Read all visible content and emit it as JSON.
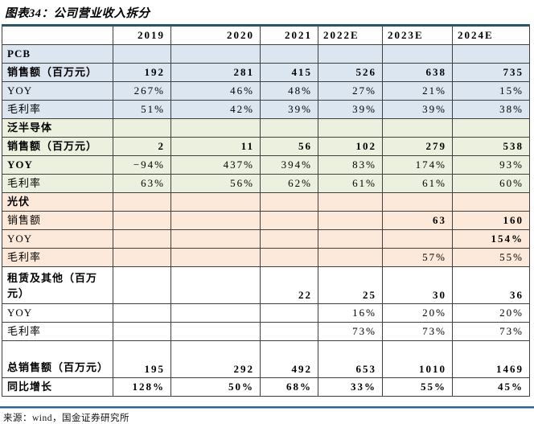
{
  "title": "图表34：公司营业收入拆分",
  "source": "来源：wind，国金证券研究所",
  "colors": {
    "pcb_section_fill": "#dce6f1",
    "semi_section_fill": "#ebf1de",
    "pv_section_fill": "#fde9d9",
    "grid_border": "#3f3f3f",
    "outer_top_border": "#2b5568",
    "bottom_rule_blue": "#35618f"
  },
  "table": {
    "columns": [
      "",
      "2019",
      "2020",
      "2021",
      "2022E",
      "2023E",
      "2024E"
    ],
    "rows": [
      {
        "label": "PCB",
        "bg": "blue",
        "label_bold": true,
        "values_bold": false,
        "tall": false,
        "values": [
          "",
          "",
          "",
          "",
          "",
          ""
        ]
      },
      {
        "label": "销售额（百万元）",
        "bg": "blue",
        "label_bold": true,
        "values_bold": true,
        "tall": false,
        "values": [
          "192",
          "281",
          "415",
          "526",
          "638",
          "735"
        ]
      },
      {
        "label": "YOY",
        "bg": "blue",
        "label_bold": false,
        "values_bold": false,
        "tall": false,
        "values": [
          "267%",
          "46%",
          "48%",
          "27%",
          "21%",
          "15%"
        ]
      },
      {
        "label": "毛利率",
        "bg": "blue",
        "label_bold": false,
        "values_bold": false,
        "tall": false,
        "values": [
          "51%",
          "42%",
          "39%",
          "39%",
          "39%",
          "38%"
        ]
      },
      {
        "label": "泛半导体",
        "bg": "green",
        "label_bold": true,
        "values_bold": false,
        "tall": false,
        "values": [
          "",
          "",
          "",
          "",
          "",
          ""
        ]
      },
      {
        "label": "销售额（百万元）",
        "bg": "green",
        "label_bold": true,
        "values_bold": true,
        "tall": false,
        "values": [
          "2",
          "11",
          "56",
          "102",
          "279",
          "538"
        ]
      },
      {
        "label": "YOY",
        "bg": "green",
        "label_bold": true,
        "values_bold": false,
        "tall": false,
        "values": [
          "−94%",
          "437%",
          "394%",
          "83%",
          "174%",
          "93%"
        ]
      },
      {
        "label": "毛利率",
        "bg": "green",
        "label_bold": false,
        "values_bold": false,
        "tall": false,
        "values": [
          "63%",
          "56%",
          "62%",
          "61%",
          "61%",
          "60%"
        ]
      },
      {
        "label": "光伏",
        "bg": "peach",
        "label_bold": true,
        "values_bold": false,
        "tall": false,
        "values": [
          "",
          "",
          "",
          "",
          "",
          ""
        ]
      },
      {
        "label": "销售额",
        "bg": "peach",
        "label_bold": false,
        "values_bold": true,
        "tall": false,
        "values": [
          "",
          "",
          "",
          "",
          "63",
          "160"
        ]
      },
      {
        "label": "YOY",
        "bg": "peach",
        "label_bold": false,
        "values_bold": true,
        "tall": false,
        "values": [
          "",
          "",
          "",
          "",
          "",
          "154%"
        ]
      },
      {
        "label": "毛利率",
        "bg": "peach",
        "label_bold": false,
        "values_bold": false,
        "tall": false,
        "values": [
          "",
          "",
          "",
          "",
          "57%",
          "55%"
        ]
      },
      {
        "label": "租赁及其他（百万元）",
        "bg": "white",
        "label_bold": true,
        "values_bold": true,
        "tall": true,
        "values": [
          "",
          "",
          "22",
          "25",
          "30",
          "36"
        ]
      },
      {
        "label": "YOY",
        "bg": "white",
        "label_bold": false,
        "values_bold": false,
        "tall": false,
        "values": [
          "",
          "",
          "",
          "16%",
          "20%",
          "20%"
        ]
      },
      {
        "label": "毛利率",
        "bg": "white",
        "label_bold": false,
        "values_bold": false,
        "tall": false,
        "values": [
          "",
          "",
          "",
          "73%",
          "73%",
          "73%"
        ]
      },
      {
        "label": "总销售额（百万元）",
        "bg": "white",
        "label_bold": true,
        "values_bold": true,
        "tall": true,
        "values": [
          "195",
          "292",
          "492",
          "653",
          "1010",
          "1469"
        ]
      },
      {
        "label": "同比增长",
        "bg": "white",
        "label_bold": true,
        "values_bold": true,
        "tall": false,
        "values": [
          "128%",
          "50%",
          "68%",
          "33%",
          "55%",
          "45%"
        ]
      }
    ]
  }
}
